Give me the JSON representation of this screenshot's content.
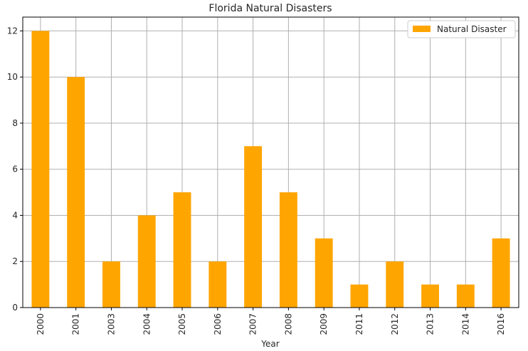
{
  "chart_data": {
    "type": "bar",
    "title": "Florida Natural Disasters",
    "xlabel": "Year",
    "ylabel": "",
    "categories": [
      "2000",
      "2001",
      "2003",
      "2004",
      "2005",
      "2006",
      "2007",
      "2008",
      "2009",
      "2011",
      "2012",
      "2013",
      "2014",
      "2016"
    ],
    "series": [
      {
        "name": "Natural Disaster",
        "values": [
          12,
          10,
          2,
          4,
          5,
          2,
          7,
          5,
          3,
          1,
          2,
          1,
          1,
          3
        ],
        "color": "#FFA500"
      }
    ],
    "ylim": [
      0,
      12.6
    ],
    "yticks": [
      "0",
      "2",
      "4",
      "6",
      "8",
      "10",
      "12"
    ],
    "grid": true,
    "legend": "top-right",
    "tick_label_rotation": "vertical"
  }
}
